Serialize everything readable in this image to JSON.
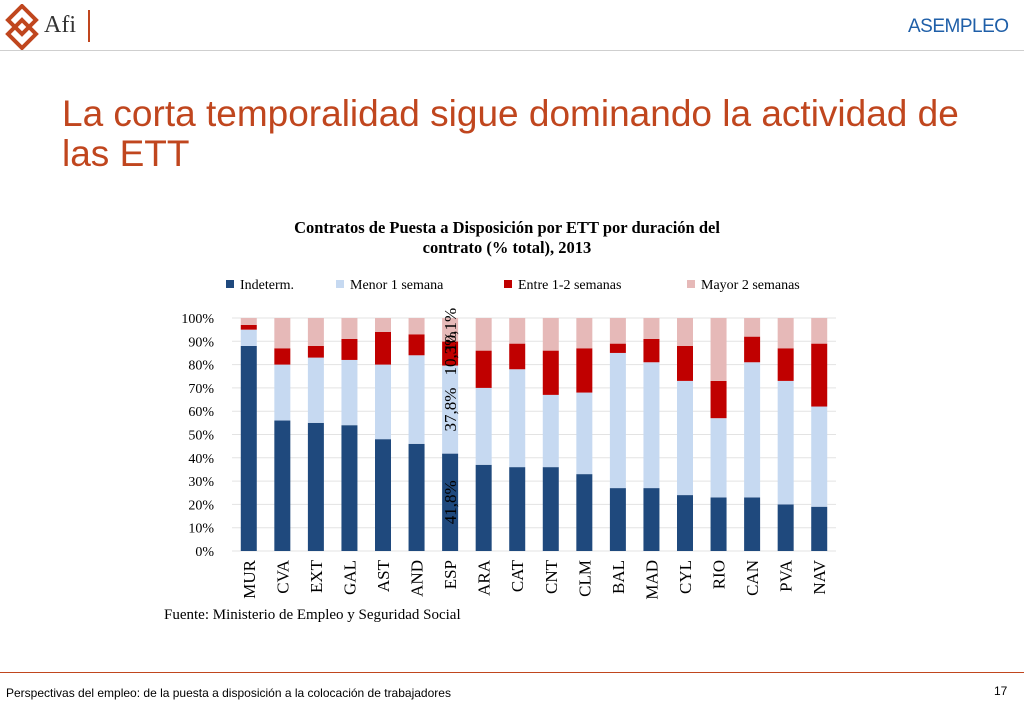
{
  "header": {
    "afi_label": "Afi",
    "asempleo_label": "ASEMPLEO",
    "brand_color": "#c0461e",
    "asempleo_color": "#1f5fa8"
  },
  "page_title": "La corta temporalidad sigue dominando la actividad de las ETT",
  "chart_data": {
    "type": "bar",
    "stacked": true,
    "title_line1": "Contratos de Puesta a Disposición por ETT por duración del",
    "title_line2": "contrato (% total), 2013",
    "categories": [
      "MUR",
      "CVA",
      "EXT",
      "GAL",
      "AST",
      "AND",
      "ESP",
      "ARA",
      "CAT",
      "CNT",
      "CLM",
      "BAL",
      "MAD",
      "CYL",
      "RIO",
      "CAN",
      "PVA",
      "NAV"
    ],
    "series": [
      {
        "name": "Indeterm.",
        "color": "#1f497d",
        "values": [
          88,
          56,
          55,
          54,
          48,
          46,
          41.8,
          37,
          36,
          36,
          33,
          27,
          27,
          24,
          23,
          23,
          20,
          19
        ]
      },
      {
        "name": "Menor 1 semana",
        "color": "#c6d9f1",
        "values": [
          7,
          24,
          28,
          28,
          32,
          38,
          37.8,
          33,
          42,
          31,
          35,
          58,
          54,
          49,
          34,
          58,
          53,
          43
        ]
      },
      {
        "name": "Entre 1-2 semanas",
        "color": "#c00000",
        "values": [
          2,
          7,
          5,
          9,
          14,
          9,
          10.3,
          16,
          11,
          19,
          19,
          4,
          10,
          15,
          16,
          11,
          14,
          27
        ]
      },
      {
        "name": "Mayor 2 semanas",
        "color": "#e6b9b8",
        "values": [
          3,
          13,
          12,
          9,
          6,
          7,
          10.1,
          14,
          11,
          14,
          13,
          11,
          9,
          12,
          27,
          8,
          13,
          11
        ]
      }
    ],
    "annotations": {
      "category": "ESP",
      "labels": [
        "41,8%",
        "37,8%",
        "10,3%",
        "10,1%"
      ]
    },
    "yticks": [
      "0%",
      "10%",
      "20%",
      "30%",
      "40%",
      "50%",
      "60%",
      "70%",
      "80%",
      "90%",
      "100%"
    ],
    "ylim": [
      0,
      100
    ],
    "legend_position": "top",
    "xlabel": "",
    "ylabel": ""
  },
  "source": "Fuente: Ministerio de Empleo  y Seguridad Social",
  "footer": {
    "text": "Perspectivas del empleo: de la puesta a disposición a la colocación de trabajadores",
    "page_number": "17"
  }
}
